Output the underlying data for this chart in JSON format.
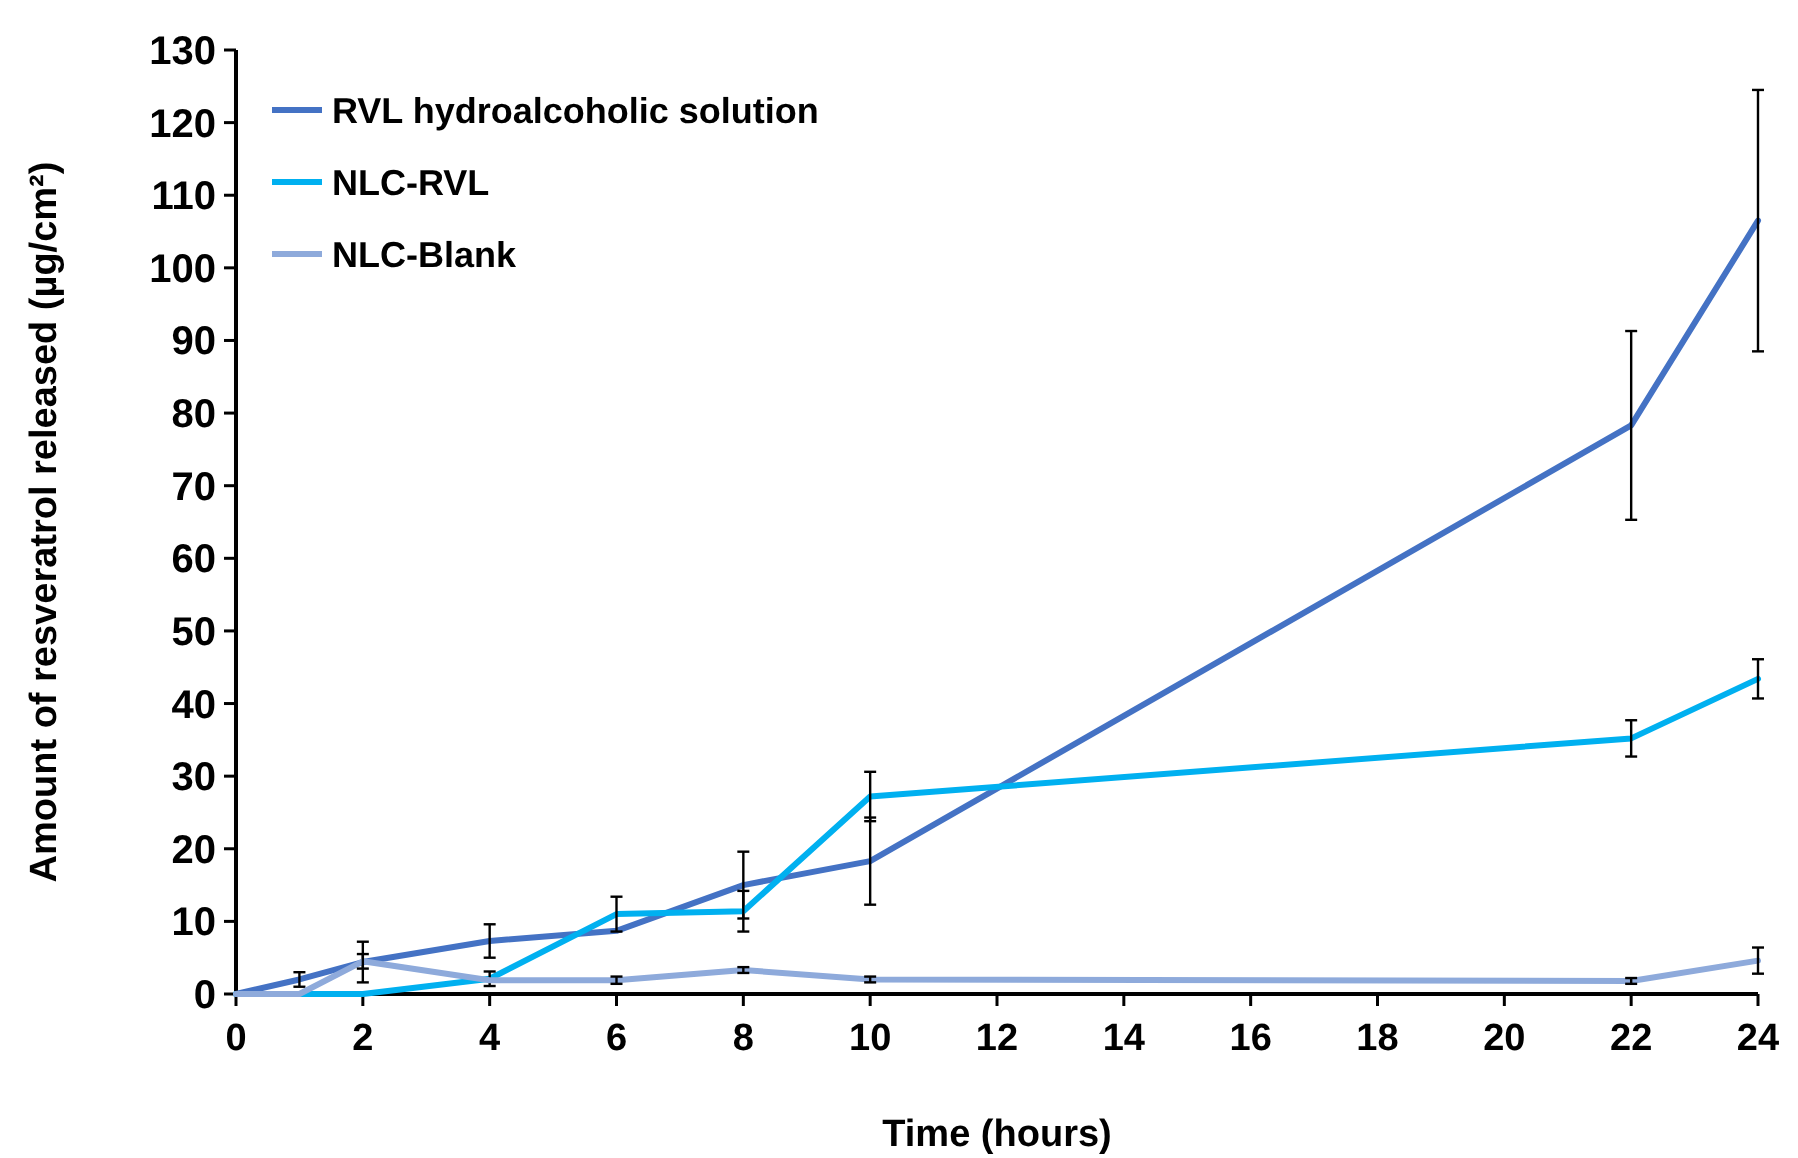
{
  "chart_data": {
    "type": "line",
    "xlabel": "Time (hours)",
    "ylabel": "Amount of resveratrol released (µg/cm²)",
    "x": [
      0,
      1,
      2,
      4,
      6,
      8,
      10,
      22,
      24
    ],
    "xlim": [
      0,
      24
    ],
    "xticks": [
      0,
      2,
      4,
      6,
      8,
      10,
      12,
      14,
      16,
      18,
      20,
      22,
      24
    ],
    "ylim": [
      0,
      130
    ],
    "yticks": [
      0,
      10,
      20,
      30,
      40,
      50,
      60,
      70,
      80,
      90,
      100,
      110,
      120,
      130
    ],
    "grid": false,
    "legend": "top left",
    "marker": "none",
    "line_style": "solid",
    "series": [
      {
        "name": "RVL hydroalcoholic solution",
        "color": "#4472c4",
        "values": [
          0,
          2,
          4.4,
          7.3,
          8.7,
          15,
          18.3,
          78.3,
          106.5
        ],
        "errors": [
          null,
          1,
          2.8,
          2.3,
          null,
          4.6,
          6,
          13,
          18
        ]
      },
      {
        "name": "NLC-RVL",
        "color": "#00b0f0",
        "values": [
          0,
          0,
          0,
          2.1,
          11,
          11.4,
          27.2,
          35.2,
          43.4
        ],
        "errors": [
          null,
          null,
          null,
          1,
          2.4,
          2.8,
          3.4,
          2.5,
          2.7
        ]
      },
      {
        "name": "NLC-Blank",
        "color": "#8eaadb",
        "values": [
          0,
          0,
          4.5,
          1.9,
          1.9,
          3.3,
          2,
          1.8,
          4.6
        ],
        "errors": [
          null,
          null,
          1,
          null,
          0.5,
          0.4,
          0.4,
          0.4,
          1.8
        ]
      }
    ]
  }
}
